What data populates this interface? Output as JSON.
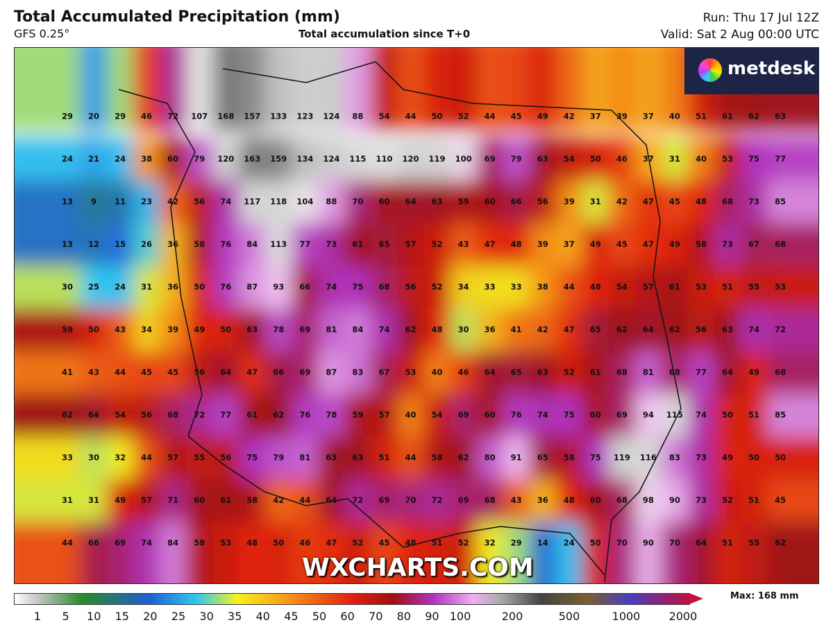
{
  "header": {
    "title": "Total Accumulated Precipitation (mm)",
    "model": "GFS 0.25°",
    "subtitle": "Total accumulation since T+0",
    "run": "Run: Thu 17 Jul 12Z",
    "valid": "Valid: Sat 2 Aug 00:00 UTC"
  },
  "logo": "metdesk",
  "watermark": "WXCHARTS.COM",
  "grid": {
    "rows": [
      [
        29,
        20,
        29,
        46,
        72,
        107,
        168,
        157,
        133,
        123,
        124,
        88,
        54,
        44,
        50,
        52,
        44,
        45,
        49,
        42,
        37,
        39,
        37,
        40,
        51,
        61,
        62,
        63
      ],
      [
        24,
        21,
        24,
        38,
        60,
        79,
        120,
        163,
        159,
        134,
        124,
        115,
        110,
        120,
        119,
        100,
        69,
        79,
        63,
        54,
        50,
        46,
        37,
        31,
        40,
        53,
        75,
        77
      ],
      [
        13,
        9,
        11,
        23,
        42,
        56,
        74,
        117,
        118,
        104,
        88,
        70,
        60,
        64,
        63,
        59,
        60,
        66,
        56,
        39,
        31,
        42,
        47,
        45,
        48,
        68,
        73,
        85
      ],
      [
        13,
        12,
        15,
        26,
        36,
        58,
        76,
        84,
        113,
        77,
        73,
        61,
        65,
        57,
        52,
        43,
        47,
        48,
        39,
        37,
        49,
        45,
        47,
        49,
        58,
        73,
        67,
        68
      ],
      [
        30,
        25,
        24,
        31,
        36,
        50,
        76,
        87,
        93,
        66,
        74,
        75,
        68,
        56,
        52,
        34,
        33,
        33,
        38,
        44,
        48,
        54,
        57,
        61,
        53,
        51,
        55,
        53
      ],
      [
        59,
        50,
        43,
        34,
        39,
        49,
        50,
        63,
        78,
        69,
        81,
        84,
        74,
        62,
        48,
        30,
        36,
        41,
        42,
        47,
        65,
        62,
        64,
        62,
        56,
        63,
        74,
        72
      ],
      [
        41,
        43,
        44,
        45,
        45,
        56,
        64,
        47,
        66,
        69,
        87,
        83,
        67,
        53,
        40,
        46,
        64,
        65,
        63,
        52,
        61,
        68,
        81,
        68,
        77,
        64,
        49,
        68
      ],
      [
        62,
        64,
        54,
        56,
        68,
        72,
        77,
        61,
        62,
        76,
        78,
        59,
        57,
        40,
        54,
        69,
        60,
        76,
        74,
        75,
        60,
        69,
        94,
        115,
        74,
        50,
        51,
        85
      ],
      [
        33,
        30,
        32,
        44,
        57,
        55,
        56,
        75,
        79,
        81,
        63,
        63,
        51,
        44,
        58,
        62,
        80,
        91,
        65,
        58,
        75,
        119,
        116,
        83,
        73,
        49,
        50,
        50
      ],
      [
        31,
        31,
        49,
        57,
        71,
        60,
        61,
        58,
        42,
        44,
        64,
        72,
        69,
        70,
        72,
        69,
        68,
        43,
        36,
        48,
        60,
        68,
        98,
        90,
        73,
        52,
        51,
        45
      ],
      [
        44,
        66,
        69,
        74,
        84,
        58,
        53,
        48,
        50,
        46,
        47,
        52,
        45,
        48,
        51,
        52,
        32,
        29,
        14,
        24,
        50,
        70,
        90,
        70,
        64,
        51,
        55,
        62
      ]
    ]
  },
  "colorbar": {
    "labels": [
      1,
      5,
      10,
      15,
      20,
      25,
      30,
      35,
      40,
      45,
      50,
      60,
      70,
      80,
      90,
      100,
      200,
      500,
      1000,
      2000
    ],
    "max": "Max: 168 mm"
  }
}
